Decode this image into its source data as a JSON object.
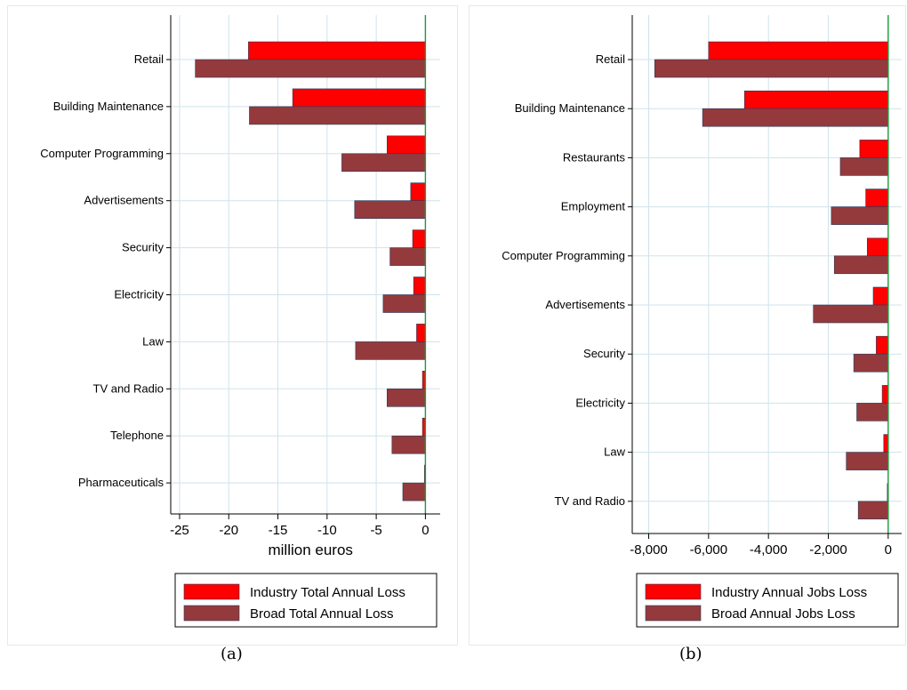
{
  "chart_data": [
    {
      "type": "bar",
      "orientation": "horizontal",
      "categories": [
        "Retail",
        "Building Maintenance",
        "Computer Programming",
        "Advertisements",
        "Security",
        "Electricity",
        "Law",
        "TV and Radio",
        "Telephone",
        "Pharmaceuticals"
      ],
      "series": [
        {
          "name": "Industry Total Annual Loss",
          "color": "#ff0000",
          "values": [
            -18,
            -13.5,
            -3.9,
            -1.5,
            -1.3,
            -1.2,
            -0.9,
            -0.3,
            -0.3,
            -0.1
          ]
        },
        {
          "name": "Broad Total Annual Loss",
          "color": "#943a3c",
          "values": [
            -23.4,
            -17.9,
            -8.5,
            -7.2,
            -3.6,
            -4.3,
            -7.1,
            -3.9,
            -3.4,
            -2.3
          ]
        }
      ],
      "xlabel": "million euros",
      "xlim": [
        -25.9,
        1.5
      ],
      "xticks": [
        -25,
        -20,
        -15,
        -10,
        -5,
        0
      ],
      "xtick_labels": [
        "-25",
        "-20",
        "-15",
        "-10",
        "-5",
        "0"
      ],
      "grid": true,
      "legend_position": "bottom",
      "caption": "(a)"
    },
    {
      "type": "bar",
      "orientation": "horizontal",
      "categories": [
        "Retail",
        "Building Maintenance",
        "Restaurants",
        "Employment",
        "Computer Programming",
        "Advertisements",
        "Security",
        "Electricity",
        "Law",
        "TV and Radio"
      ],
      "series": [
        {
          "name": "Industry Annual Jobs Loss",
          "color": "#ff0000",
          "values": [
            -6000,
            -4800,
            -950,
            -750,
            -700,
            -500,
            -400,
            -200,
            -150,
            -30
          ]
        },
        {
          "name": "Broad Annual Jobs Loss",
          "color": "#943a3c",
          "values": [
            -7800,
            -6200,
            -1600,
            -1900,
            -1800,
            -2500,
            -1150,
            -1050,
            -1400,
            -1000
          ]
        }
      ],
      "xlabel": "",
      "xlim": [
        -8550,
        450
      ],
      "xticks": [
        -8000,
        -6000,
        -4000,
        -2000,
        0
      ],
      "xtick_labels": [
        "-8,000",
        "-6,000",
        "-4,000",
        "-2,000",
        "0"
      ],
      "grid": true,
      "legend_position": "bottom",
      "caption": "(b)"
    }
  ]
}
